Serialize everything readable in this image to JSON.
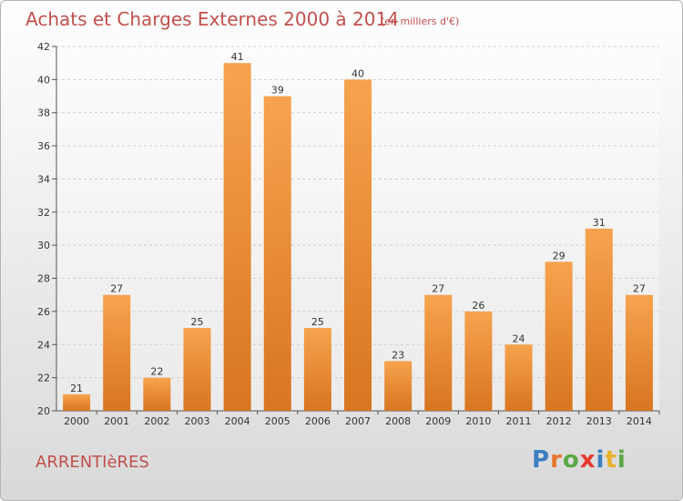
{
  "title": "Achats et Charges Externes 2000 à 2014",
  "subtitle": "(en milliers d'€)",
  "town": "ARRENTIèRES",
  "logo": {
    "letters": [
      "P",
      "r",
      "o",
      "x",
      "i",
      "t",
      "i"
    ],
    "colors": [
      "#3a7fc1",
      "#e8742a",
      "#5aa845",
      "#e63a2e",
      "#3a7fc1",
      "#e8b12a",
      "#5aa845"
    ]
  },
  "colors": {
    "bar_light": "#f7a34e",
    "bar_dark": "#d87520",
    "title": "#c0504d"
  },
  "chart_data": {
    "type": "bar",
    "categories": [
      "2000",
      "2001",
      "2002",
      "2003",
      "2004",
      "2005",
      "2006",
      "2007",
      "2008",
      "2009",
      "2010",
      "2011",
      "2012",
      "2013",
      "2014"
    ],
    "values": [
      21,
      27,
      22,
      25,
      41,
      39,
      25,
      40,
      23,
      27,
      26,
      24,
      29,
      31,
      27
    ],
    "title": "Achats et Charges Externes 2000 à 2014",
    "ylim": [
      20,
      42
    ],
    "yticks": [
      20,
      22,
      24,
      26,
      28,
      30,
      32,
      34,
      36,
      38,
      40,
      42
    ],
    "grid": true,
    "data_labels": true
  }
}
